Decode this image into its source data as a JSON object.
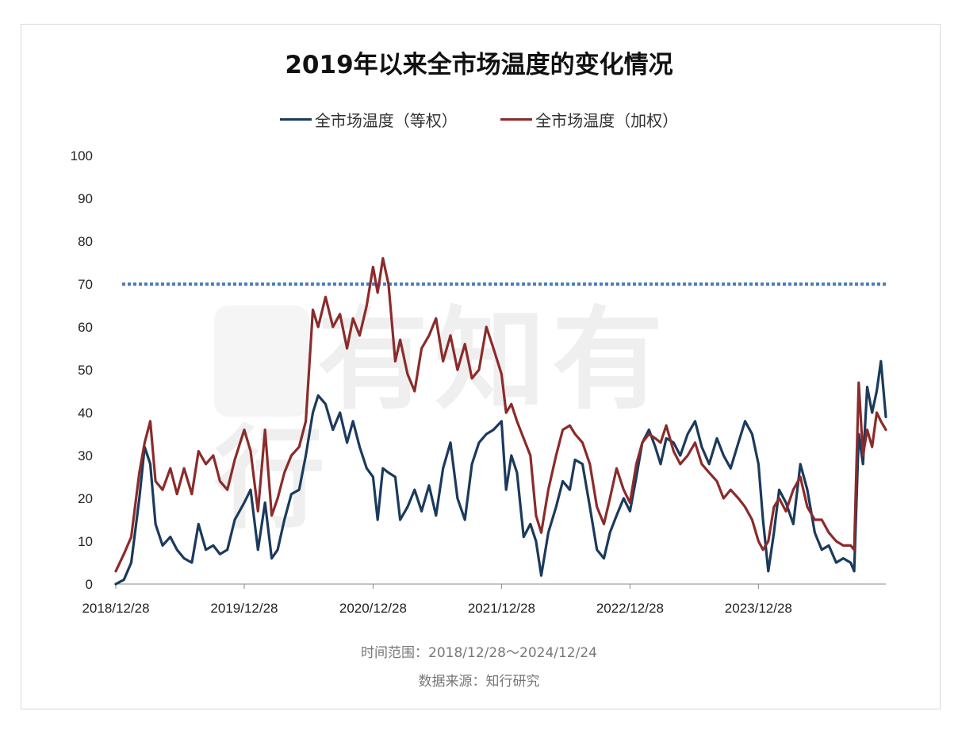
{
  "title": "2019年以来全市场温度的变化情况",
  "chart_data": {
    "type": "line",
    "title": "2019年以来全市场温度的变化情况",
    "xlabel": "",
    "ylabel": "",
    "ylim": [
      0,
      100
    ],
    "yticks": [
      0,
      10,
      20,
      30,
      40,
      50,
      60,
      70,
      80,
      90,
      100
    ],
    "xticks": [
      "2018/12/28",
      "2019/12/28",
      "2020/12/28",
      "2021/12/28",
      "2022/12/28",
      "2023/12/28"
    ],
    "x_range": [
      "2018/12/28",
      "2024/12/24"
    ],
    "threshold": {
      "value": 70,
      "style": "dotted",
      "color": "#4a7ebb"
    },
    "legend_position": "top-center",
    "grid": false,
    "series": [
      {
        "name": "全市场温度（等权）",
        "color": "#1b3a5c",
        "points": [
          [
            "2018/12/28",
            0
          ],
          [
            "2019/01/20",
            1
          ],
          [
            "2019/02/10",
            5
          ],
          [
            "2019/03/05",
            20
          ],
          [
            "2019/03/20",
            32
          ],
          [
            "2019/04/05",
            28
          ],
          [
            "2019/04/20",
            14
          ],
          [
            "2019/05/10",
            9
          ],
          [
            "2019/06/01",
            11
          ],
          [
            "2019/06/20",
            8
          ],
          [
            "2019/07/10",
            6
          ],
          [
            "2019/08/01",
            5
          ],
          [
            "2019/08/20",
            14
          ],
          [
            "2019/09/10",
            8
          ],
          [
            "2019/10/01",
            9
          ],
          [
            "2019/10/20",
            7
          ],
          [
            "2019/11/10",
            8
          ],
          [
            "2019/12/01",
            15
          ],
          [
            "2019/12/28",
            19
          ],
          [
            "2020/01/15",
            22
          ],
          [
            "2020/02/05",
            8
          ],
          [
            "2020/02/25",
            19
          ],
          [
            "2020/03/15",
            6
          ],
          [
            "2020/04/01",
            8
          ],
          [
            "2020/04/20",
            15
          ],
          [
            "2020/05/10",
            21
          ],
          [
            "2020/06/01",
            22
          ],
          [
            "2020/06/20",
            30
          ],
          [
            "2020/07/10",
            40
          ],
          [
            "2020/07/25",
            44
          ],
          [
            "2020/08/15",
            42
          ],
          [
            "2020/09/05",
            36
          ],
          [
            "2020/09/25",
            40
          ],
          [
            "2020/10/15",
            33
          ],
          [
            "2020/11/01",
            38
          ],
          [
            "2020/11/20",
            32
          ],
          [
            "2020/12/10",
            27
          ],
          [
            "2020/12/28",
            25
          ],
          [
            "2021/01/10",
            15
          ],
          [
            "2021/01/25",
            27
          ],
          [
            "2021/02/10",
            26
          ],
          [
            "2021/03/01",
            25
          ],
          [
            "2021/03/15",
            15
          ],
          [
            "2021/04/05",
            18
          ],
          [
            "2021/04/25",
            22
          ],
          [
            "2021/05/15",
            17
          ],
          [
            "2021/06/05",
            23
          ],
          [
            "2021/06/25",
            16
          ],
          [
            "2021/07/15",
            27
          ],
          [
            "2021/08/05",
            33
          ],
          [
            "2021/08/25",
            20
          ],
          [
            "2021/09/15",
            15
          ],
          [
            "2021/10/05",
            28
          ],
          [
            "2021/10/25",
            33
          ],
          [
            "2021/11/15",
            35
          ],
          [
            "2021/12/05",
            36
          ],
          [
            "2021/12/28",
            38
          ],
          [
            "2022/01/10",
            22
          ],
          [
            "2022/01/25",
            30
          ],
          [
            "2022/02/10",
            26
          ],
          [
            "2022/03/01",
            11
          ],
          [
            "2022/03/20",
            14
          ],
          [
            "2022/04/05",
            10
          ],
          [
            "2022/04/20",
            2
          ],
          [
            "2022/05/10",
            12
          ],
          [
            "2022/06/01",
            18
          ],
          [
            "2022/06/20",
            24
          ],
          [
            "2022/07/10",
            22
          ],
          [
            "2022/07/25",
            29
          ],
          [
            "2022/08/15",
            28
          ],
          [
            "2022/09/05",
            18
          ],
          [
            "2022/09/25",
            8
          ],
          [
            "2022/10/15",
            6
          ],
          [
            "2022/11/01",
            12
          ],
          [
            "2022/11/20",
            16
          ],
          [
            "2022/12/10",
            20
          ],
          [
            "2022/12/28",
            17
          ],
          [
            "2023/01/15",
            25
          ],
          [
            "2023/02/01",
            33
          ],
          [
            "2023/02/20",
            36
          ],
          [
            "2023/03/10",
            32
          ],
          [
            "2023/03/25",
            28
          ],
          [
            "2023/04/10",
            34
          ],
          [
            "2023/05/01",
            33
          ],
          [
            "2023/05/20",
            30
          ],
          [
            "2023/06/10",
            35
          ],
          [
            "2023/07/01",
            38
          ],
          [
            "2023/07/20",
            32
          ],
          [
            "2023/08/10",
            28
          ],
          [
            "2023/09/01",
            34
          ],
          [
            "2023/09/20",
            30
          ],
          [
            "2023/10/10",
            27
          ],
          [
            "2023/11/01",
            33
          ],
          [
            "2023/11/20",
            38
          ],
          [
            "2023/12/10",
            35
          ],
          [
            "2023/12/28",
            28
          ],
          [
            "2024/01/10",
            15
          ],
          [
            "2024/01/25",
            3
          ],
          [
            "2024/02/10",
            12
          ],
          [
            "2024/02/25",
            22
          ],
          [
            "2024/03/15",
            19
          ],
          [
            "2024/04/05",
            14
          ],
          [
            "2024/04/25",
            28
          ],
          [
            "2024/05/15",
            22
          ],
          [
            "2024/06/05",
            12
          ],
          [
            "2024/06/25",
            8
          ],
          [
            "2024/07/15",
            9
          ],
          [
            "2024/08/05",
            5
          ],
          [
            "2024/08/25",
            6
          ],
          [
            "2024/09/15",
            5
          ],
          [
            "2024/09/25",
            3
          ],
          [
            "2024/10/08",
            35
          ],
          [
            "2024/10/20",
            28
          ],
          [
            "2024/11/01",
            46
          ],
          [
            "2024/11/15",
            40
          ],
          [
            "2024/11/28",
            45
          ],
          [
            "2024/12/10",
            52
          ],
          [
            "2024/12/24",
            39
          ]
        ]
      },
      {
        "name": "全市场温度（加权）",
        "color": "#8b2b2b",
        "points": [
          [
            "2018/12/28",
            3
          ],
          [
            "2019/01/20",
            7
          ],
          [
            "2019/02/10",
            11
          ],
          [
            "2019/03/05",
            26
          ],
          [
            "2019/03/20",
            33
          ],
          [
            "2019/04/05",
            38
          ],
          [
            "2019/04/20",
            24
          ],
          [
            "2019/05/10",
            22
          ],
          [
            "2019/06/01",
            27
          ],
          [
            "2019/06/20",
            21
          ],
          [
            "2019/07/10",
            27
          ],
          [
            "2019/08/01",
            21
          ],
          [
            "2019/08/20",
            31
          ],
          [
            "2019/09/10",
            28
          ],
          [
            "2019/10/01",
            30
          ],
          [
            "2019/10/20",
            24
          ],
          [
            "2019/11/10",
            22
          ],
          [
            "2019/12/01",
            29
          ],
          [
            "2019/12/28",
            36
          ],
          [
            "2020/01/15",
            31
          ],
          [
            "2020/02/05",
            17
          ],
          [
            "2020/02/25",
            36
          ],
          [
            "2020/03/15",
            16
          ],
          [
            "2020/04/01",
            20
          ],
          [
            "2020/04/20",
            26
          ],
          [
            "2020/05/10",
            30
          ],
          [
            "2020/06/01",
            32
          ],
          [
            "2020/06/20",
            38
          ],
          [
            "2020/07/10",
            64
          ],
          [
            "2020/07/25",
            60
          ],
          [
            "2020/08/15",
            67
          ],
          [
            "2020/09/05",
            60
          ],
          [
            "2020/09/25",
            63
          ],
          [
            "2020/10/15",
            55
          ],
          [
            "2020/11/01",
            62
          ],
          [
            "2020/11/20",
            58
          ],
          [
            "2020/12/10",
            65
          ],
          [
            "2020/12/28",
            74
          ],
          [
            "2021/01/10",
            68
          ],
          [
            "2021/01/25",
            76
          ],
          [
            "2021/02/10",
            70
          ],
          [
            "2021/03/01",
            52
          ],
          [
            "2021/03/15",
            57
          ],
          [
            "2021/04/05",
            49
          ],
          [
            "2021/04/25",
            45
          ],
          [
            "2021/05/15",
            55
          ],
          [
            "2021/06/05",
            58
          ],
          [
            "2021/06/25",
            62
          ],
          [
            "2021/07/15",
            52
          ],
          [
            "2021/08/05",
            58
          ],
          [
            "2021/08/25",
            50
          ],
          [
            "2021/09/15",
            56
          ],
          [
            "2021/10/05",
            48
          ],
          [
            "2021/10/25",
            50
          ],
          [
            "2021/11/15",
            60
          ],
          [
            "2021/12/05",
            55
          ],
          [
            "2021/12/28",
            49
          ],
          [
            "2022/01/10",
            40
          ],
          [
            "2022/01/25",
            42
          ],
          [
            "2022/02/10",
            38
          ],
          [
            "2022/03/01",
            34
          ],
          [
            "2022/03/20",
            30
          ],
          [
            "2022/04/05",
            16
          ],
          [
            "2022/04/20",
            12
          ],
          [
            "2022/05/10",
            22
          ],
          [
            "2022/06/01",
            30
          ],
          [
            "2022/06/20",
            36
          ],
          [
            "2022/07/10",
            37
          ],
          [
            "2022/07/25",
            35
          ],
          [
            "2022/08/15",
            33
          ],
          [
            "2022/09/05",
            28
          ],
          [
            "2022/09/25",
            18
          ],
          [
            "2022/10/15",
            14
          ],
          [
            "2022/11/01",
            20
          ],
          [
            "2022/11/20",
            27
          ],
          [
            "2022/12/10",
            22
          ],
          [
            "2022/12/28",
            19
          ],
          [
            "2023/01/15",
            28
          ],
          [
            "2023/02/01",
            33
          ],
          [
            "2023/02/20",
            35
          ],
          [
            "2023/03/10",
            34
          ],
          [
            "2023/03/25",
            33
          ],
          [
            "2023/04/10",
            37
          ],
          [
            "2023/05/01",
            31
          ],
          [
            "2023/05/20",
            28
          ],
          [
            "2023/06/10",
            30
          ],
          [
            "2023/07/01",
            33
          ],
          [
            "2023/07/20",
            28
          ],
          [
            "2023/08/10",
            26
          ],
          [
            "2023/09/01",
            24
          ],
          [
            "2023/09/20",
            20
          ],
          [
            "2023/10/10",
            22
          ],
          [
            "2023/11/01",
            20
          ],
          [
            "2023/11/20",
            18
          ],
          [
            "2023/12/10",
            15
          ],
          [
            "2023/12/28",
            10
          ],
          [
            "2024/01/10",
            8
          ],
          [
            "2024/01/25",
            10
          ],
          [
            "2024/02/10",
            18
          ],
          [
            "2024/02/25",
            20
          ],
          [
            "2024/03/15",
            17
          ],
          [
            "2024/04/05",
            22
          ],
          [
            "2024/04/25",
            25
          ],
          [
            "2024/05/15",
            18
          ],
          [
            "2024/06/05",
            15
          ],
          [
            "2024/06/25",
            15
          ],
          [
            "2024/07/15",
            12
          ],
          [
            "2024/08/05",
            10
          ],
          [
            "2024/08/25",
            9
          ],
          [
            "2024/09/15",
            9
          ],
          [
            "2024/09/25",
            8
          ],
          [
            "2024/10/08",
            47
          ],
          [
            "2024/10/20",
            30
          ],
          [
            "2024/11/01",
            36
          ],
          [
            "2024/11/15",
            32
          ],
          [
            "2024/11/28",
            40
          ],
          [
            "2024/12/10",
            38
          ],
          [
            "2024/12/24",
            36
          ]
        ]
      }
    ]
  },
  "footer": {
    "range": "时间范围：2018/12/28～2024/12/24",
    "source": "数据来源：知行研究"
  },
  "watermark": "有知有行"
}
